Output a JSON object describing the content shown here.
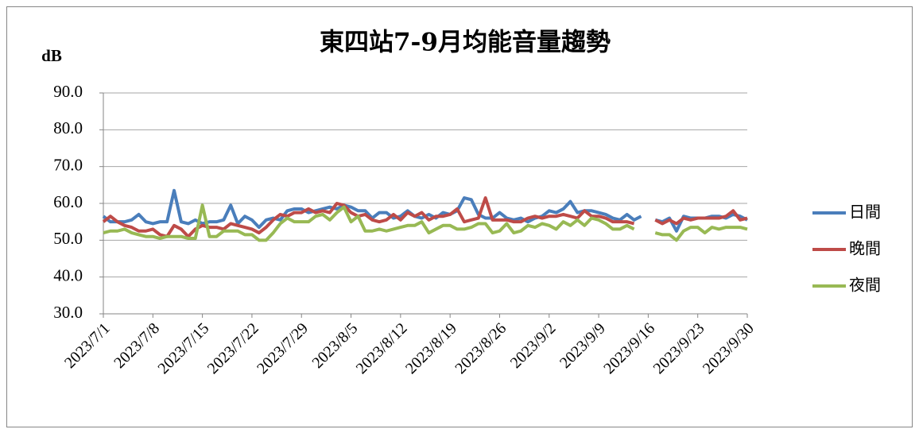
{
  "chart_data": {
    "type": "line",
    "title": "東四站7-9月均能音量趨勢",
    "y_label": "dB",
    "categories": [
      "2023/7/1",
      null,
      null,
      null,
      null,
      null,
      null,
      "2023/7/8",
      null,
      null,
      null,
      null,
      null,
      null,
      "2023/7/15",
      null,
      null,
      null,
      null,
      null,
      null,
      "2023/7/22",
      null,
      null,
      null,
      null,
      null,
      null,
      "2023/7/29",
      null,
      null,
      null,
      null,
      null,
      null,
      "2023/8/5",
      null,
      null,
      null,
      null,
      null,
      null,
      "2023/8/12",
      null,
      null,
      null,
      null,
      null,
      null,
      "2023/8/19",
      null,
      null,
      null,
      null,
      null,
      null,
      "2023/8/26",
      null,
      null,
      null,
      null,
      null,
      null,
      "2023/9/2",
      null,
      null,
      null,
      null,
      null,
      null,
      "2023/9/9",
      null,
      null,
      null,
      null,
      null,
      null,
      "2023/9/16",
      null,
      null,
      null,
      null,
      null,
      null,
      "2023/9/23",
      null,
      null,
      null,
      null,
      null,
      null,
      "2023/9/30"
    ],
    "series": [
      {
        "name": "日間",
        "color": "#4a7ebb",
        "values": [
          56.5,
          55,
          55,
          55,
          55.5,
          57,
          55,
          54.5,
          55,
          55,
          63.5,
          55,
          54.5,
          55.5,
          54.5,
          55,
          55,
          55.5,
          59.5,
          54.5,
          56.5,
          55.5,
          53.5,
          55.5,
          56,
          55.5,
          58,
          58.5,
          58.5,
          57.5,
          58,
          58.5,
          59,
          58.5,
          59.5,
          59,
          58,
          58,
          56,
          57.5,
          57.5,
          56,
          56.5,
          58,
          56.5,
          56,
          57,
          56,
          57.5,
          57,
          58,
          61.5,
          61,
          57,
          56,
          56,
          57.5,
          56,
          55.5,
          56,
          55,
          56,
          56.5,
          58,
          57.5,
          58.5,
          60.5,
          57.5,
          58,
          58,
          57.5,
          57,
          56,
          55.5,
          57,
          55.5,
          56.5,
          null,
          55.5,
          55,
          56,
          52.5,
          56.5,
          56,
          56,
          56,
          56.5,
          56.5,
          56,
          57,
          56.5,
          55.5
        ]
      },
      {
        "name": "晚間",
        "color": "#be4b48",
        "values": [
          55,
          56.5,
          55,
          54,
          53.5,
          52.5,
          52.5,
          53,
          51.5,
          51,
          54,
          53,
          51,
          53,
          54,
          53.5,
          53.5,
          53,
          54.5,
          54,
          53.5,
          53,
          52,
          53.5,
          55.5,
          57,
          56.5,
          57.5,
          57.5,
          58.5,
          57.5,
          58,
          57.5,
          60,
          59.5,
          57.5,
          56.5,
          57,
          55.5,
          55,
          55.5,
          57,
          55.5,
          57.5,
          56.5,
          57.5,
          55.5,
          56.5,
          56.5,
          57,
          58.5,
          55,
          55.5,
          56,
          61.5,
          55.5,
          55.5,
          55.5,
          55,
          55,
          56,
          56.5,
          56,
          56.5,
          56.5,
          57,
          56.5,
          56,
          58,
          56.5,
          56.5,
          56,
          55,
          55,
          55,
          54.5,
          null,
          null,
          55.5,
          54.5,
          55.5,
          54.5,
          56,
          55.5,
          56,
          56,
          56,
          56,
          56.5,
          58,
          55.5,
          56
        ]
      },
      {
        "name": "夜間",
        "color": "#98b954",
        "values": [
          52,
          52.5,
          52.5,
          53,
          52,
          51.5,
          51,
          51,
          50.5,
          51,
          51,
          51,
          50.5,
          50.5,
          59.5,
          51,
          51,
          52.5,
          52.5,
          52.5,
          51.5,
          51.5,
          50,
          50,
          52,
          54.5,
          56,
          55,
          55,
          55,
          56.5,
          57,
          55.5,
          57.5,
          59,
          55,
          56.5,
          52.5,
          52.5,
          53,
          52.5,
          53,
          53.5,
          54,
          54,
          55,
          52,
          53,
          54,
          54,
          53,
          53,
          53.5,
          54.5,
          54.5,
          52,
          52.5,
          54.5,
          52,
          52.5,
          54,
          53.5,
          54.5,
          54,
          53,
          55,
          54,
          55.5,
          54,
          56,
          55.5,
          54.5,
          53,
          53,
          54,
          53,
          null,
          null,
          52,
          51.5,
          51.5,
          50,
          52.5,
          53.5,
          53.5,
          52,
          53.5,
          53,
          53.5,
          53.5,
          53.5,
          53
        ]
      }
    ],
    "ylim": [
      30,
      90
    ],
    "yticks": [
      {
        "value": 30,
        "label": "30.0"
      },
      {
        "value": 40,
        "label": "40.0"
      },
      {
        "value": 50,
        "label": "50.0"
      },
      {
        "value": 60,
        "label": "60.0"
      },
      {
        "value": 70,
        "label": "70.0"
      },
      {
        "value": 80,
        "label": "80.0"
      },
      {
        "value": 90,
        "label": "90.0"
      }
    ],
    "grid": true,
    "legend": "right"
  }
}
